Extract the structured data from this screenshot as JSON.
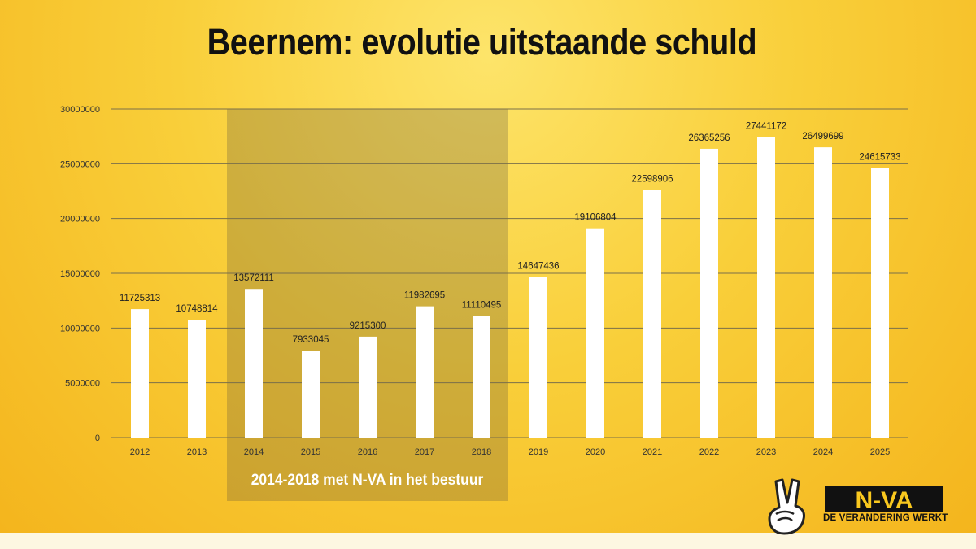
{
  "title": "Beernem: evolutie uitstaande schuld",
  "period_label": "2014-2018 met N-VA in het bestuur",
  "logo": {
    "text": "N-VA",
    "slogan": "DE VERANDERING WERKT"
  },
  "colors": {
    "bar": "#ffffff",
    "grid": "#7a6f4a",
    "highlight": "rgba(80,70,60,0.25)",
    "title": "#111111"
  },
  "chart_data": {
    "type": "bar",
    "title": "Beernem: evolutie uitstaande schuld",
    "xlabel": "",
    "ylabel": "",
    "ylim": [
      0,
      30000000
    ],
    "yticks": [
      "30000000",
      "25000000",
      "20000000",
      "15000000",
      "10000000",
      "5000000",
      "0"
    ],
    "ytick_values": [
      30000000,
      25000000,
      20000000,
      15000000,
      10000000,
      5000000,
      0
    ],
    "categories": [
      "2012",
      "2013",
      "2014",
      "2015",
      "2016",
      "2017",
      "2018",
      "2019",
      "2020",
      "2021",
      "2022",
      "2023",
      "2024",
      "2025"
    ],
    "values": [
      11725313,
      10748814,
      13572111,
      7933045,
      9215300,
      11982695,
      11110495,
      14647436,
      19106804,
      22598906,
      26365256,
      27441172,
      26499699,
      24615733
    ],
    "highlight_range": [
      "2014",
      "2018"
    ],
    "grid": true
  }
}
